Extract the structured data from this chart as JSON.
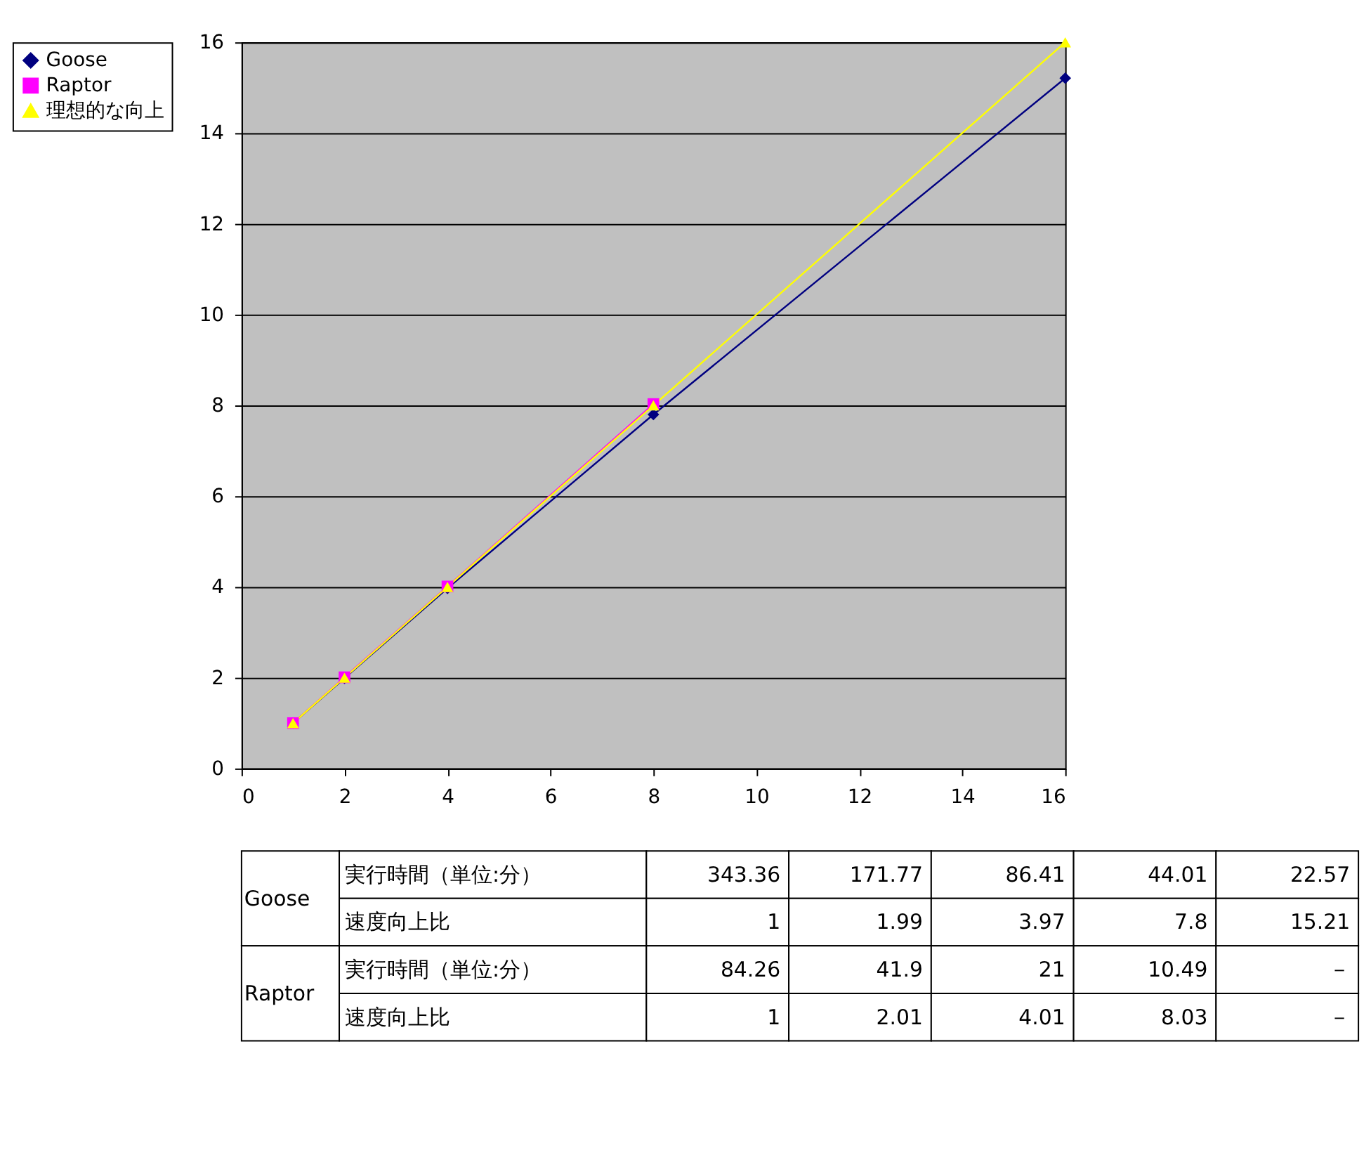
{
  "chart_data": [
    {
      "type": "line",
      "xlim": [
        0,
        16
      ],
      "xticks": [
        0,
        2,
        4,
        6,
        8,
        10,
        12,
        14,
        16
      ],
      "ylim": [
        0,
        16
      ],
      "yticks": [
        0,
        2,
        4,
        6,
        8,
        10,
        12,
        14,
        16
      ],
      "grid": "y",
      "legend": "left",
      "line_style": "solid",
      "series": [
        {
          "name": "Goose",
          "color": "#000080",
          "marker": "diamond",
          "x": [
            1,
            2,
            4,
            8,
            16
          ],
          "values": [
            1,
            1.99,
            3.97,
            7.8,
            15.21
          ]
        },
        {
          "name": "Raptor",
          "color": "#ff00ff",
          "marker": "square",
          "x": [
            1,
            2,
            4,
            8
          ],
          "values": [
            1,
            2.01,
            4.01,
            8.03
          ]
        },
        {
          "name": "理想的な向上",
          "color": "#ffff00",
          "marker": "triangle",
          "x": [
            1,
            2,
            4,
            8,
            16
          ],
          "values": [
            1,
            2,
            4,
            8,
            16
          ]
        }
      ]
    },
    {
      "type": "other",
      "annotations": [
        "Goose",
        "Raptor"
      ],
      "y_categories": [
        "実行時間（単位:分）",
        "速度向上比",
        "実行時間（単位:分）",
        "速度向上比"
      ],
      "cell_labels": [
        [
          "343.36",
          "171.77",
          "86.41",
          "44.01",
          "22.57"
        ],
        [
          "1",
          "1.99",
          "3.97",
          "7.8",
          "15.21"
        ],
        [
          "84.26",
          "41.9",
          "21",
          "10.49",
          "－"
        ],
        [
          "1",
          "2.01",
          "4.01",
          "8.03",
          "－"
        ]
      ]
    }
  ]
}
